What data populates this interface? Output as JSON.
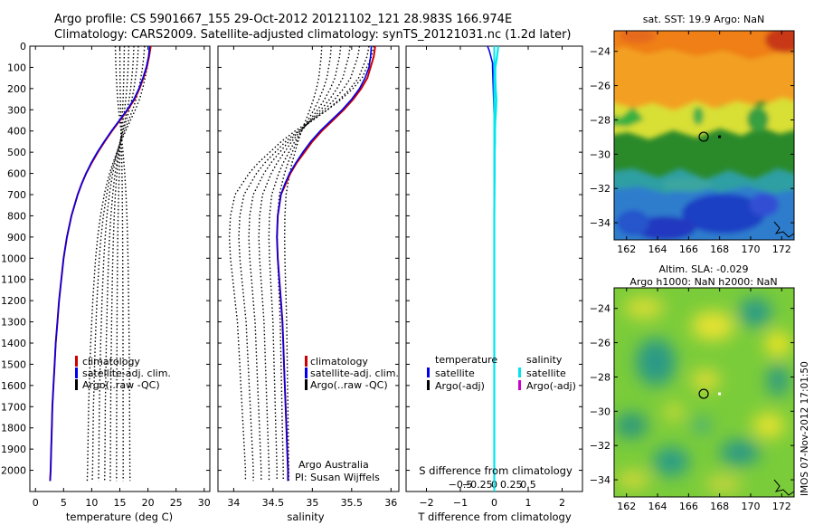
{
  "header": {
    "line1": "Argo profile: CS 5901667_155 29-Oct-2012 20121102_121 28.983S 166.974E",
    "line2": "Climatology: CARS2009. Satellite-adjusted climatology: synTS_20121031.nc (1.2d later)"
  },
  "colors": {
    "climatology": "#cc0000",
    "satellite": "#0000ee",
    "argo": "#000000",
    "salinity_diff_satellite": "#00e5ee",
    "salinity_diff_argo": "#cc00cc",
    "map_marker": "#000000"
  },
  "chart_data": [
    {
      "type": "line",
      "panel": "temperature",
      "xlabel": "temperature (deg C)",
      "ylabel": "",
      "xlim": [
        -1,
        31
      ],
      "ylim": [
        2100,
        0
      ],
      "xticks": [
        0,
        5,
        10,
        15,
        20,
        25,
        30
      ],
      "yticks": [
        0,
        100,
        200,
        300,
        400,
        500,
        600,
        700,
        800,
        900,
        1000,
        1100,
        1200,
        1300,
        1400,
        1500,
        1600,
        1700,
        1800,
        1900,
        2000
      ],
      "depth": [
        0,
        50,
        100,
        150,
        200,
        250,
        300,
        350,
        400,
        450,
        500,
        550,
        600,
        650,
        700,
        800,
        900,
        1000,
        1100,
        1200,
        1300,
        1400,
        1500,
        1600,
        1700,
        1800,
        1900,
        2000,
        2050
      ],
      "series": [
        {
          "name": "climatology",
          "values": [
            20.5,
            20.2,
            19.8,
            19.2,
            18.5,
            17.6,
            16.4,
            15.0,
            13.6,
            12.3,
            11.1,
            10.0,
            9.0,
            8.2,
            7.5,
            6.4,
            5.6,
            5.0,
            4.6,
            4.2,
            3.9,
            3.6,
            3.4,
            3.2,
            3.0,
            2.9,
            2.8,
            2.7,
            2.6
          ]
        },
        {
          "name": "satellite-adj. clim.",
          "values": [
            20.3,
            20.1,
            19.7,
            19.1,
            18.4,
            17.5,
            16.3,
            14.9,
            13.5,
            12.2,
            11.0,
            9.9,
            9.0,
            8.2,
            7.5,
            6.4,
            5.6,
            5.0,
            4.6,
            4.2,
            3.9,
            3.6,
            3.4,
            3.2,
            3.0,
            2.9,
            2.8,
            2.7,
            2.6
          ]
        }
      ],
      "argo_raw_qc_profiles": [
        {
          "surface": 20.3,
          "deep": 9.2
        },
        {
          "surface": 19.4,
          "deep": 10.1
        },
        {
          "surface": 18.3,
          "deep": 11.2
        },
        {
          "surface": 17.5,
          "deep": 12.3
        },
        {
          "surface": 16.6,
          "deep": 13.3
        },
        {
          "surface": 15.8,
          "deep": 14.4
        },
        {
          "surface": 15.0,
          "deep": 15.6
        },
        {
          "surface": 14.2,
          "deep": 16.8
        }
      ],
      "legend": {
        "placement": "lower-middle",
        "entries": [
          "climatology",
          "satellite-adj. clim.",
          "Argo(..raw -QC)"
        ]
      }
    },
    {
      "type": "line",
      "panel": "salinity",
      "xlabel": "salinity",
      "ylabel": "",
      "xlim": [
        33.8,
        36.1
      ],
      "ylim": [
        2100,
        0
      ],
      "xticks": [
        34,
        34.5,
        35,
        35.5,
        36
      ],
      "depth": [
        0,
        50,
        100,
        150,
        200,
        250,
        300,
        350,
        400,
        450,
        500,
        550,
        600,
        650,
        700,
        800,
        900,
        1000,
        1100,
        1200,
        1300,
        1400,
        1500,
        1600,
        1700,
        1800,
        1900,
        2000,
        2050
      ],
      "series": [
        {
          "name": "climatology",
          "values": [
            35.8,
            35.78,
            35.74,
            35.7,
            35.62,
            35.52,
            35.4,
            35.26,
            35.12,
            35.0,
            34.9,
            34.8,
            34.72,
            34.66,
            34.6,
            34.56,
            34.55,
            34.56,
            34.58,
            34.6,
            34.62,
            34.63,
            34.64,
            34.65,
            34.66,
            34.67,
            34.68,
            34.69,
            34.69
          ]
        },
        {
          "name": "satellite-adj. clim.",
          "values": [
            35.75,
            35.74,
            35.72,
            35.67,
            35.6,
            35.5,
            35.38,
            35.24,
            35.1,
            34.98,
            34.88,
            34.79,
            34.71,
            34.65,
            34.6,
            34.56,
            34.55,
            34.56,
            34.58,
            34.6,
            34.62,
            34.63,
            34.64,
            34.65,
            34.66,
            34.67,
            34.68,
            34.69,
            34.69
          ]
        }
      ],
      "argo_raw_qc_profiles": [
        {
          "surface": 35.78,
          "deep": 34.15
        },
        {
          "surface": 35.72,
          "deep": 34.25
        },
        {
          "surface": 35.6,
          "deep": 34.35
        },
        {
          "surface": 35.48,
          "deep": 34.45
        },
        {
          "surface": 35.36,
          "deep": 34.55
        },
        {
          "surface": 35.24,
          "deep": 34.63
        },
        {
          "surface": 35.12,
          "deep": 34.7
        }
      ],
      "legend": {
        "placement": "lower-middle",
        "entries": [
          "climatology",
          "satellite-adj. clim.",
          "Argo(..raw -QC)"
        ]
      },
      "annotations": [
        "Argo Australia",
        "PI: Susan Wijffels"
      ]
    },
    {
      "type": "line",
      "panel": "difference",
      "xlabel": "T difference from climatology",
      "top_axis_label": "S difference from climatology",
      "xlim": [
        -2.6,
        2.6
      ],
      "ylim": [
        2100,
        0
      ],
      "xticks": [
        -2,
        -1,
        0,
        1,
        2
      ],
      "xticklabels": [
        "−2",
        "−1",
        "0",
        "1",
        "2"
      ],
      "top_ticks": [
        -0.5,
        -0.25,
        0,
        0.25,
        0.5
      ],
      "top_ticklabels": [
        "−0.5",
        "−0.25",
        "0",
        "0.25",
        "0.5"
      ],
      "depth": [
        0,
        20,
        50,
        80,
        100,
        150,
        200,
        250,
        300,
        350,
        400,
        450,
        500,
        600,
        800,
        1000,
        1500,
        2000,
        2050
      ],
      "series": [
        {
          "name": "temperature satellite",
          "values": [
            -0.2,
            -0.15,
            -0.1,
            -0.05,
            -0.05,
            -0.04,
            -0.03,
            -0.02,
            -0.01,
            0,
            0,
            0,
            0,
            0,
            0,
            0,
            0,
            0,
            0
          ]
        },
        {
          "name": "salinity satellite",
          "values": [
            0.12,
            0.1,
            0.08,
            0.05,
            0.03,
            0.03,
            0.04,
            0.06,
            0.05,
            0.03,
            0.02,
            0.02,
            0.01,
            0.01,
            0,
            0,
            0,
            0,
            0
          ]
        }
      ],
      "legend": {
        "placement": "lower-middle",
        "headers": [
          "temperature",
          "salinity"
        ],
        "temperature_entries": [
          "satellite",
          "Argo(-adj)"
        ],
        "salinity_entries": [
          "satellite",
          "Argo(-adj)"
        ]
      }
    },
    {
      "type": "heatmap",
      "panel": "sst_map",
      "title": "sat. SST: 19.9 Argo: NaN",
      "xlim": [
        161.2,
        172.8
      ],
      "ylim": [
        -35,
        -22.8
      ],
      "xticks": [
        162,
        164,
        166,
        168,
        170,
        172
      ],
      "yticks": [
        -24,
        -26,
        -28,
        -30,
        -32,
        -34
      ],
      "float_position": {
        "lon": 166.974,
        "lat": -28.983
      }
    },
    {
      "type": "heatmap",
      "panel": "sla_map",
      "title_line1": "Altim. SLA: -0.029",
      "title_line2": "Argo h1000: NaN h2000: NaN",
      "xlim": [
        161.2,
        172.8
      ],
      "ylim": [
        -35,
        -22.8
      ],
      "xticks": [
        162,
        164,
        166,
        168,
        170,
        172
      ],
      "yticks": [
        -24,
        -26,
        -28,
        -30,
        -32,
        -34
      ],
      "float_position": {
        "lon": 166.974,
        "lat": -28.983
      }
    }
  ],
  "side_stamp": "IMOS 07-Nov-2012 17:01:50"
}
